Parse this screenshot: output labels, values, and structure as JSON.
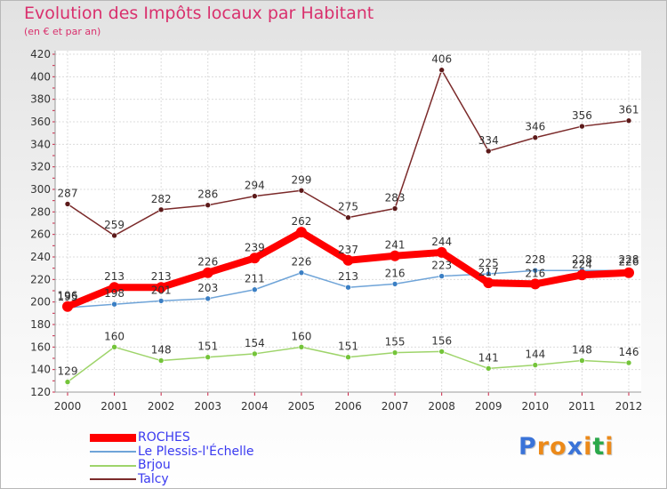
{
  "title": "Evolution des Impôts locaux par Habitant",
  "subtitle": "(en € et par an)",
  "brand": {
    "letters": [
      "P",
      "r",
      "o",
      "x",
      "i",
      "t",
      "i"
    ],
    "colors": [
      "#3a73d8",
      "#ec8a1a",
      "#ec8a1a",
      "#3a73d8",
      "#ec8a1a",
      "#2aa84a",
      "#ec8a1a"
    ]
  },
  "chart_data": {
    "type": "line",
    "x": [
      "2000",
      "2001",
      "2002",
      "2003",
      "2004",
      "2005",
      "2006",
      "2007",
      "2008",
      "2009",
      "2010",
      "2011",
      "2012"
    ],
    "ylim": [
      120,
      420
    ],
    "yticks": [
      "120",
      "140",
      "160",
      "180",
      "200",
      "220",
      "240",
      "260",
      "280",
      "300",
      "320",
      "340",
      "360",
      "380",
      "400",
      "420"
    ],
    "grid": true,
    "legend_position": "bottom-left",
    "series": [
      {
        "name": "Talcy",
        "color": "#7b2a2a",
        "marker_color": "#5c1a1a",
        "values": [
          287,
          259,
          282,
          286,
          294,
          299,
          275,
          283,
          406,
          334,
          346,
          356,
          361
        ],
        "labels": [
          "287",
          "259",
          "282",
          "286",
          "294",
          "299",
          "275",
          "283",
          "406",
          "334",
          "346",
          "356",
          "361"
        ]
      },
      {
        "name": "Brjou",
        "color": "#9ed46a",
        "marker_color": "#74c43a",
        "values": [
          129,
          160,
          148,
          151,
          154,
          160,
          151,
          155,
          156,
          141,
          144,
          148,
          146
        ],
        "labels": [
          "129",
          "160",
          "148",
          "151",
          "154",
          "160",
          "151",
          "155",
          "156",
          "141",
          "144",
          "148",
          "146"
        ]
      },
      {
        "name": "Le Plessis-l'Échelle",
        "color": "#6fa4d8",
        "marker_color": "#3b7fc4",
        "values": [
          195,
          198,
          201,
          203,
          211,
          226,
          213,
          216,
          223,
          225,
          228,
          228,
          228
        ],
        "labels": [
          "195",
          "198",
          "201",
          "203",
          "211",
          "226",
          "213",
          "216",
          "223",
          "225",
          "228",
          "228",
          "228"
        ]
      },
      {
        "name": "ROCHES",
        "color": "#ff0000",
        "marker_color": "#ff0000",
        "values": [
          196,
          213,
          213,
          226,
          239,
          262,
          237,
          241,
          244,
          217,
          216,
          224,
          226
        ],
        "labels": [
          "196",
          "213",
          "213",
          "226",
          "239",
          "262",
          "237",
          "241",
          "244",
          "217",
          "216",
          "224",
          "226"
        ]
      }
    ],
    "legend": [
      "ROCHES",
      "Le Plessis-l'Échelle",
      "Brjou",
      "Talcy"
    ]
  }
}
